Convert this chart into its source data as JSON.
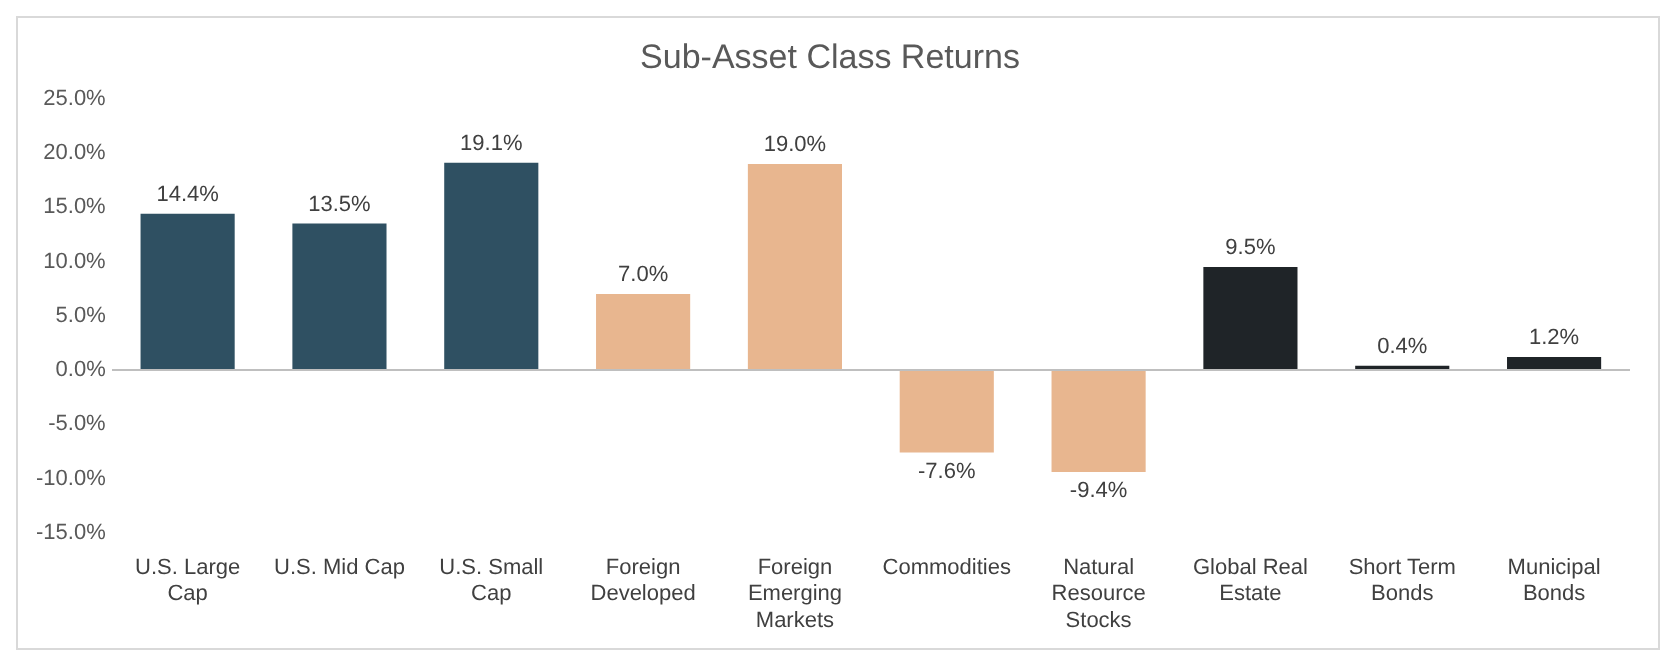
{
  "chart_data": {
    "type": "bar",
    "title": "Sub-Asset Class Returns",
    "categories": [
      "U.S. Large Cap",
      "U.S. Mid Cap",
      "U.S. Small Cap",
      "Foreign Developed",
      "Foreign Emerging Markets",
      "Commodities",
      "Natural Resource Stocks",
      "Global Real Estate",
      "Short Term Bonds",
      "Municipal Bonds"
    ],
    "values": [
      14.4,
      13.5,
      19.1,
      7.0,
      19.0,
      -7.6,
      -9.4,
      9.5,
      0.4,
      1.2
    ],
    "colors": [
      "#2f5062",
      "#2f5062",
      "#2f5062",
      "#e8b68f",
      "#e8b68f",
      "#e8b68f",
      "#e8b68f",
      "#1f2428",
      "#1f2428",
      "#1f2428"
    ],
    "value_labels": [
      "14.4%",
      "13.5%",
      "19.1%",
      "7.0%",
      "19.0%",
      "-7.6%",
      "-9.4%",
      "9.5%",
      "0.4%",
      "1.2%"
    ],
    "ylim": [
      -15,
      25
    ],
    "yticks": [
      {
        "value": -15,
        "label": "-15.0%"
      },
      {
        "value": -10,
        "label": "-10.0%"
      },
      {
        "value": -5,
        "label": "-5.0%"
      },
      {
        "value": 0,
        "label": "0.0%"
      },
      {
        "value": 5,
        "label": "5.0%"
      },
      {
        "value": 10,
        "label": "10.0%"
      },
      {
        "value": 15,
        "label": "15.0%"
      },
      {
        "value": 20,
        "label": "20.0%"
      },
      {
        "value": 25,
        "label": "25.0%"
      }
    ]
  }
}
